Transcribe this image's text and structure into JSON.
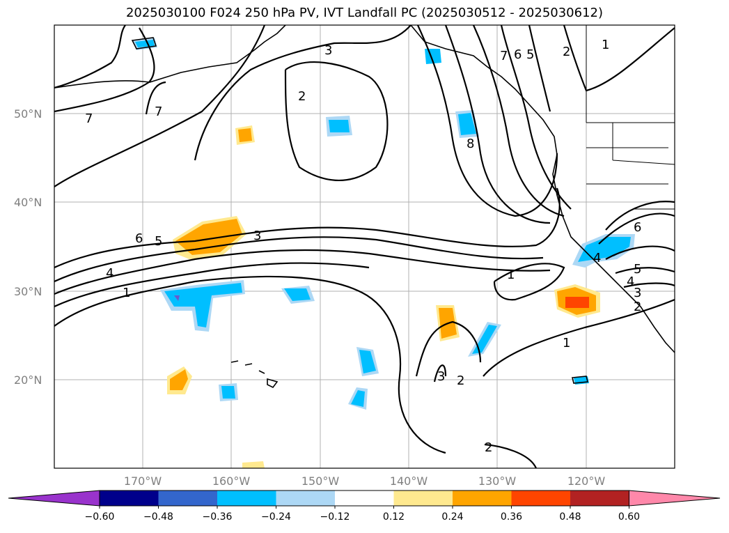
{
  "title": "2025030100 F024 250 hPa PV, IVT Landfall PC (2025030512 - 2025030612)",
  "lat_labels": [
    "50°N",
    "40°N",
    "30°N",
    "20°N"
  ],
  "lon_labels": [
    "170°W",
    "160°W",
    "150°W",
    "140°W",
    "130°W",
    "120°W"
  ],
  "colorbar": {
    "ticks": [
      "−0.60",
      "−0.48",
      "−0.36",
      "−0.24",
      "−0.12",
      "0.12",
      "0.24",
      "0.36",
      "0.48",
      "0.60"
    ],
    "colors": [
      "#9933cc",
      "#00008b",
      "#3366cc",
      "#00bfff",
      "#add8f5",
      "#ffffff",
      "#ffe98f",
      "#ffa500",
      "#ff4500",
      "#b22222",
      "#ff88aa"
    ]
  },
  "contour_labels": [
    "7",
    "7",
    "3",
    "2",
    "7",
    "6",
    "5",
    "2",
    "1",
    "8",
    "6",
    "5",
    "4",
    "1",
    "3",
    "1",
    "6",
    "4",
    "5",
    "4",
    "3",
    "2",
    "1",
    "3",
    "2",
    "2"
  ]
}
